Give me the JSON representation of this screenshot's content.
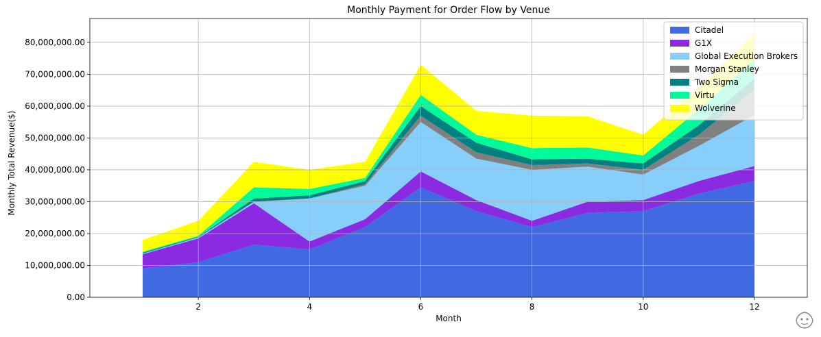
{
  "chart_data": {
    "type": "area",
    "stacked": true,
    "title": "Monthly Payment for Order Flow by Venue",
    "xlabel": "Month",
    "ylabel": "Monthly Total Revenue($)",
    "x": [
      1,
      2,
      3,
      4,
      5,
      6,
      7,
      8,
      9,
      10,
      11,
      12
    ],
    "xlim": [
      0.05,
      12.95
    ],
    "ylim": [
      0,
      87500000
    ],
    "x_ticks": [
      2,
      4,
      6,
      8,
      10,
      12
    ],
    "x_tick_labels": [
      "2",
      "4",
      "6",
      "8",
      "10",
      "12"
    ],
    "y_ticks": [
      0,
      10000000,
      20000000,
      30000000,
      40000000,
      50000000,
      60000000,
      70000000,
      80000000
    ],
    "y_tick_labels": [
      "0.00",
      "10,000,000.00",
      "20,000,000.00",
      "30,000,000.00",
      "40,000,000.00",
      "50,000,000.00",
      "60,000,000.00",
      "70,000,000.00",
      "80,000,000.00"
    ],
    "grid": true,
    "legend_position": "top-right",
    "series": [
      {
        "name": "Citadel",
        "color": "#4169e1",
        "values": [
          9000000,
          11000000,
          16500000,
          15000000,
          22000000,
          34500000,
          27000000,
          22000000,
          26500000,
          27000000,
          32500000,
          36500000
        ]
      },
      {
        "name": "G1X",
        "color": "#8a2be2",
        "values": [
          4500000,
          7500000,
          13000000,
          2500000,
          2500000,
          5000000,
          3500000,
          2000000,
          3500000,
          3500000,
          4000000,
          4700000
        ]
      },
      {
        "name": "Global Execution Brokers",
        "color": "#87cefa",
        "values": [
          200000,
          300000,
          500000,
          13500000,
          10500000,
          15500000,
          13000000,
          16000000,
          11000000,
          8000000,
          11000000,
          16000000
        ]
      },
      {
        "name": "Morgan Stanley",
        "color": "#808080",
        "values": [
          0,
          0,
          0,
          0,
          500000,
          2000000,
          2000000,
          1500000,
          1000000,
          1500000,
          3500000,
          8000000
        ]
      },
      {
        "name": "Two Sigma",
        "color": "#008080",
        "values": [
          300000,
          200000,
          1000000,
          1000000,
          1000000,
          3000000,
          3000000,
          1800000,
          1500000,
          2000000,
          3000000,
          3500000
        ]
      },
      {
        "name": "Virtu",
        "color": "#00fa9a",
        "values": [
          300000,
          300000,
          3500000,
          2000000,
          1000000,
          3500000,
          2500000,
          3500000,
          3500000,
          2500000,
          5000000,
          6000000
        ]
      },
      {
        "name": "Wolverine",
        "color": "#ffff00",
        "values": [
          3700000,
          4700000,
          8000000,
          6000000,
          5000000,
          9500000,
          7500000,
          10200000,
          9800000,
          6500000,
          7000000,
          8300000
        ]
      }
    ]
  },
  "watermark": {
    "icon": "sticker-icon"
  }
}
